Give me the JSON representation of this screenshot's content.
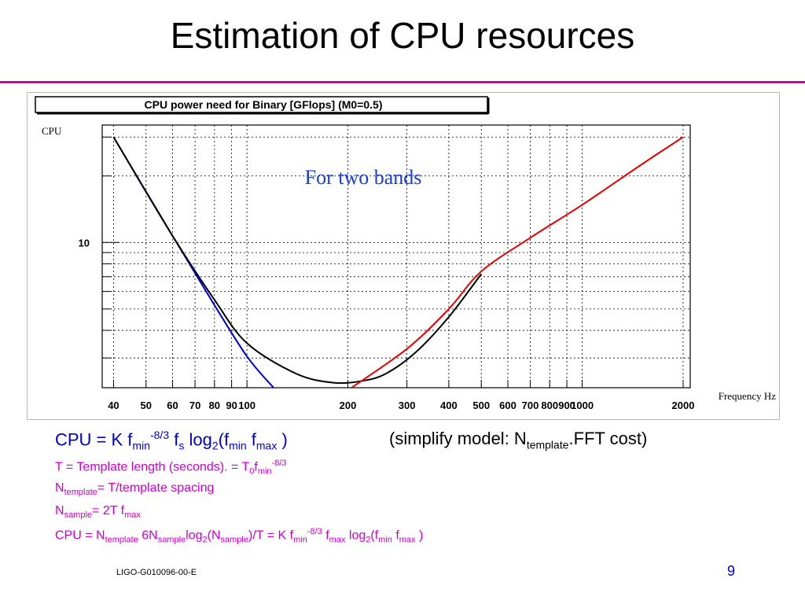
{
  "slide": {
    "title": "Estimation of CPU resources",
    "footer_id": "LIGO-G010096-00-E",
    "page_number": "9",
    "accent_color": "#cc0099"
  },
  "chart_data": {
    "type": "line",
    "title": "CPU power need for Binary [GFlops] (M0=0.5)",
    "ylabel": "CPU",
    "xlabel": "Frequency Hz",
    "annotation": "For two bands",
    "x_scale": "log",
    "y_scale": "log",
    "xlim": [
      37,
      2100
    ],
    "ylim": [
      2.2,
      34
    ],
    "grid": true,
    "x_tick_labels": [
      {
        "value": 40,
        "label": "40"
      },
      {
        "value": 50,
        "label": "50"
      },
      {
        "value": 60,
        "label": "60"
      },
      {
        "value": 70,
        "label": "70"
      },
      {
        "value": 80,
        "label": "80"
      },
      {
        "value": 90,
        "label": "90"
      },
      {
        "value": 100,
        "label": "100"
      },
      {
        "value": 200,
        "label": "200"
      },
      {
        "value": 300,
        "label": "300"
      },
      {
        "value": 400,
        "label": "400"
      },
      {
        "value": 500,
        "label": "500"
      },
      {
        "value": 600,
        "label": "600"
      },
      {
        "value": 700,
        "label": "700"
      },
      {
        "value": 800,
        "label": "800"
      },
      {
        "value": 900,
        "label": "900"
      },
      {
        "value": 1000,
        "label": "1000"
      },
      {
        "value": 2000,
        "label": "2000"
      }
    ],
    "y_tick_labels": [
      {
        "value": 10,
        "label": "10"
      }
    ],
    "series": [
      {
        "color": "#0000dd",
        "x": [
          40,
          60,
          80,
          100,
          120
        ],
        "y": [
          30,
          10.7,
          5.2,
          3.05,
          2.2
        ]
      },
      {
        "color": "#000000",
        "x": [
          40,
          60,
          80,
          100,
          140,
          180,
          220,
          260,
          320,
          400,
          500
        ],
        "y": [
          30,
          10.7,
          5.5,
          3.5,
          2.55,
          2.32,
          2.36,
          2.55,
          3.2,
          4.6,
          7.2
        ]
      },
      {
        "color": "#ee0000",
        "x": [
          205,
          300,
          400,
          500,
          700,
          1000,
          1500,
          2000
        ],
        "y": [
          2.2,
          3.3,
          5.0,
          7.4,
          10.5,
          14.8,
          22.5,
          30
        ]
      }
    ]
  }
}
